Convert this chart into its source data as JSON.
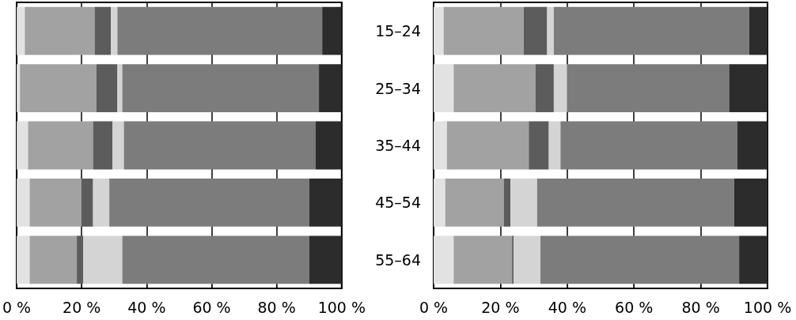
{
  "chart_data": [
    {
      "type": "bar",
      "orientation": "horizontal",
      "stacked": true,
      "categories": [
        null,
        null,
        null,
        null,
        null
      ],
      "xlim": [
        0,
        100
      ],
      "xticks": [
        {
          "value": 0,
          "label": "0 %"
        },
        {
          "value": 20,
          "label": "20 %"
        },
        {
          "value": 40,
          "label": "40 %"
        },
        {
          "value": 60,
          "label": "60 %"
        },
        {
          "value": 80,
          "label": "80 %"
        },
        {
          "value": 100,
          "label": "100 %"
        }
      ],
      "grid": "x",
      "series": [
        {
          "color": "#e2e2e2",
          "values": [
            2.5,
            1,
            3.5,
            4,
            4
          ]
        },
        {
          "color": "#a2a2a2",
          "values": [
            21.5,
            23.5,
            20,
            16,
            14.5
          ]
        },
        {
          "color": "#5c5c5c",
          "values": [
            5,
            6.5,
            6,
            3.5,
            2
          ]
        },
        {
          "color": "#d4d4d4",
          "values": [
            2,
            1.5,
            3.5,
            5,
            12
          ]
        },
        {
          "color": "#7c7c7c",
          "values": [
            63,
            60.5,
            59,
            61.5,
            57.5
          ]
        },
        {
          "color": "#2c2c2c",
          "values": [
            6,
            7,
            8,
            10,
            10
          ]
        }
      ]
    },
    {
      "type": "bar",
      "orientation": "horizontal",
      "stacked": true,
      "categories": [
        "15–24",
        "25–34",
        "35–44",
        "45–54",
        "55–64"
      ],
      "xlim": [
        0,
        100
      ],
      "xticks": [
        {
          "value": 0,
          "label": "0 %"
        },
        {
          "value": 20,
          "label": "20 %"
        },
        {
          "value": 40,
          "label": "40 %"
        },
        {
          "value": 60,
          "label": "60 %"
        },
        {
          "value": 80,
          "label": "80 %"
        },
        {
          "value": 100,
          "label": "100 %"
        }
      ],
      "grid": "x",
      "series": [
        {
          "color": "#e2e2e2",
          "values": [
            3,
            6,
            4,
            3.5,
            6
          ]
        },
        {
          "color": "#a2a2a2",
          "values": [
            24,
            24.5,
            24.5,
            17.5,
            17.5
          ]
        },
        {
          "color": "#5c5c5c",
          "values": [
            7,
            5.5,
            6,
            2,
            0.5
          ]
        },
        {
          "color": "#d4d4d4",
          "values": [
            2,
            4,
            3.5,
            8,
            8
          ]
        },
        {
          "color": "#7c7c7c",
          "values": [
            58.5,
            48.5,
            53,
            59,
            59.5
          ]
        },
        {
          "color": "#2c2c2c",
          "values": [
            5.5,
            11.5,
            9,
            10,
            8.5
          ]
        }
      ]
    }
  ]
}
